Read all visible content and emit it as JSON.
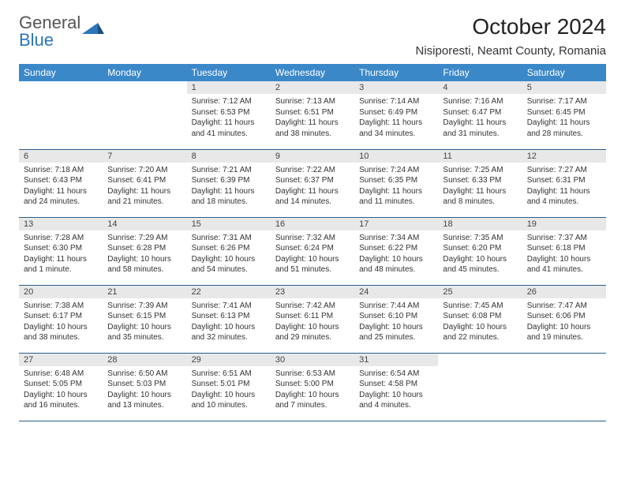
{
  "logo": {
    "text1": "General",
    "text2": "Blue"
  },
  "title": "October 2024",
  "location": "Nisiporesti, Neamt County, Romania",
  "colors": {
    "header_bg": "#3b88c9",
    "header_text": "#ffffff",
    "daynum_bg": "#e8e8e8",
    "border": "#2a5f8a",
    "logo_gray": "#555555",
    "logo_blue": "#2a76b9"
  },
  "weekdays": [
    "Sunday",
    "Monday",
    "Tuesday",
    "Wednesday",
    "Thursday",
    "Friday",
    "Saturday"
  ],
  "weeks": [
    [
      null,
      null,
      {
        "n": "1",
        "sr": "7:12 AM",
        "ss": "6:53 PM",
        "dl": "11 hours and 41 minutes."
      },
      {
        "n": "2",
        "sr": "7:13 AM",
        "ss": "6:51 PM",
        "dl": "11 hours and 38 minutes."
      },
      {
        "n": "3",
        "sr": "7:14 AM",
        "ss": "6:49 PM",
        "dl": "11 hours and 34 minutes."
      },
      {
        "n": "4",
        "sr": "7:16 AM",
        "ss": "6:47 PM",
        "dl": "11 hours and 31 minutes."
      },
      {
        "n": "5",
        "sr": "7:17 AM",
        "ss": "6:45 PM",
        "dl": "11 hours and 28 minutes."
      }
    ],
    [
      {
        "n": "6",
        "sr": "7:18 AM",
        "ss": "6:43 PM",
        "dl": "11 hours and 24 minutes."
      },
      {
        "n": "7",
        "sr": "7:20 AM",
        "ss": "6:41 PM",
        "dl": "11 hours and 21 minutes."
      },
      {
        "n": "8",
        "sr": "7:21 AM",
        "ss": "6:39 PM",
        "dl": "11 hours and 18 minutes."
      },
      {
        "n": "9",
        "sr": "7:22 AM",
        "ss": "6:37 PM",
        "dl": "11 hours and 14 minutes."
      },
      {
        "n": "10",
        "sr": "7:24 AM",
        "ss": "6:35 PM",
        "dl": "11 hours and 11 minutes."
      },
      {
        "n": "11",
        "sr": "7:25 AM",
        "ss": "6:33 PM",
        "dl": "11 hours and 8 minutes."
      },
      {
        "n": "12",
        "sr": "7:27 AM",
        "ss": "6:31 PM",
        "dl": "11 hours and 4 minutes."
      }
    ],
    [
      {
        "n": "13",
        "sr": "7:28 AM",
        "ss": "6:30 PM",
        "dl": "11 hours and 1 minute."
      },
      {
        "n": "14",
        "sr": "7:29 AM",
        "ss": "6:28 PM",
        "dl": "10 hours and 58 minutes."
      },
      {
        "n": "15",
        "sr": "7:31 AM",
        "ss": "6:26 PM",
        "dl": "10 hours and 54 minutes."
      },
      {
        "n": "16",
        "sr": "7:32 AM",
        "ss": "6:24 PM",
        "dl": "10 hours and 51 minutes."
      },
      {
        "n": "17",
        "sr": "7:34 AM",
        "ss": "6:22 PM",
        "dl": "10 hours and 48 minutes."
      },
      {
        "n": "18",
        "sr": "7:35 AM",
        "ss": "6:20 PM",
        "dl": "10 hours and 45 minutes."
      },
      {
        "n": "19",
        "sr": "7:37 AM",
        "ss": "6:18 PM",
        "dl": "10 hours and 41 minutes."
      }
    ],
    [
      {
        "n": "20",
        "sr": "7:38 AM",
        "ss": "6:17 PM",
        "dl": "10 hours and 38 minutes."
      },
      {
        "n": "21",
        "sr": "7:39 AM",
        "ss": "6:15 PM",
        "dl": "10 hours and 35 minutes."
      },
      {
        "n": "22",
        "sr": "7:41 AM",
        "ss": "6:13 PM",
        "dl": "10 hours and 32 minutes."
      },
      {
        "n": "23",
        "sr": "7:42 AM",
        "ss": "6:11 PM",
        "dl": "10 hours and 29 minutes."
      },
      {
        "n": "24",
        "sr": "7:44 AM",
        "ss": "6:10 PM",
        "dl": "10 hours and 25 minutes."
      },
      {
        "n": "25",
        "sr": "7:45 AM",
        "ss": "6:08 PM",
        "dl": "10 hours and 22 minutes."
      },
      {
        "n": "26",
        "sr": "7:47 AM",
        "ss": "6:06 PM",
        "dl": "10 hours and 19 minutes."
      }
    ],
    [
      {
        "n": "27",
        "sr": "6:48 AM",
        "ss": "5:05 PM",
        "dl": "10 hours and 16 minutes."
      },
      {
        "n": "28",
        "sr": "6:50 AM",
        "ss": "5:03 PM",
        "dl": "10 hours and 13 minutes."
      },
      {
        "n": "29",
        "sr": "6:51 AM",
        "ss": "5:01 PM",
        "dl": "10 hours and 10 minutes."
      },
      {
        "n": "30",
        "sr": "6:53 AM",
        "ss": "5:00 PM",
        "dl": "10 hours and 7 minutes."
      },
      {
        "n": "31",
        "sr": "6:54 AM",
        "ss": "4:58 PM",
        "dl": "10 hours and 4 minutes."
      },
      null,
      null
    ]
  ],
  "labels": {
    "sunrise": "Sunrise:",
    "sunset": "Sunset:",
    "daylight": "Daylight:"
  }
}
